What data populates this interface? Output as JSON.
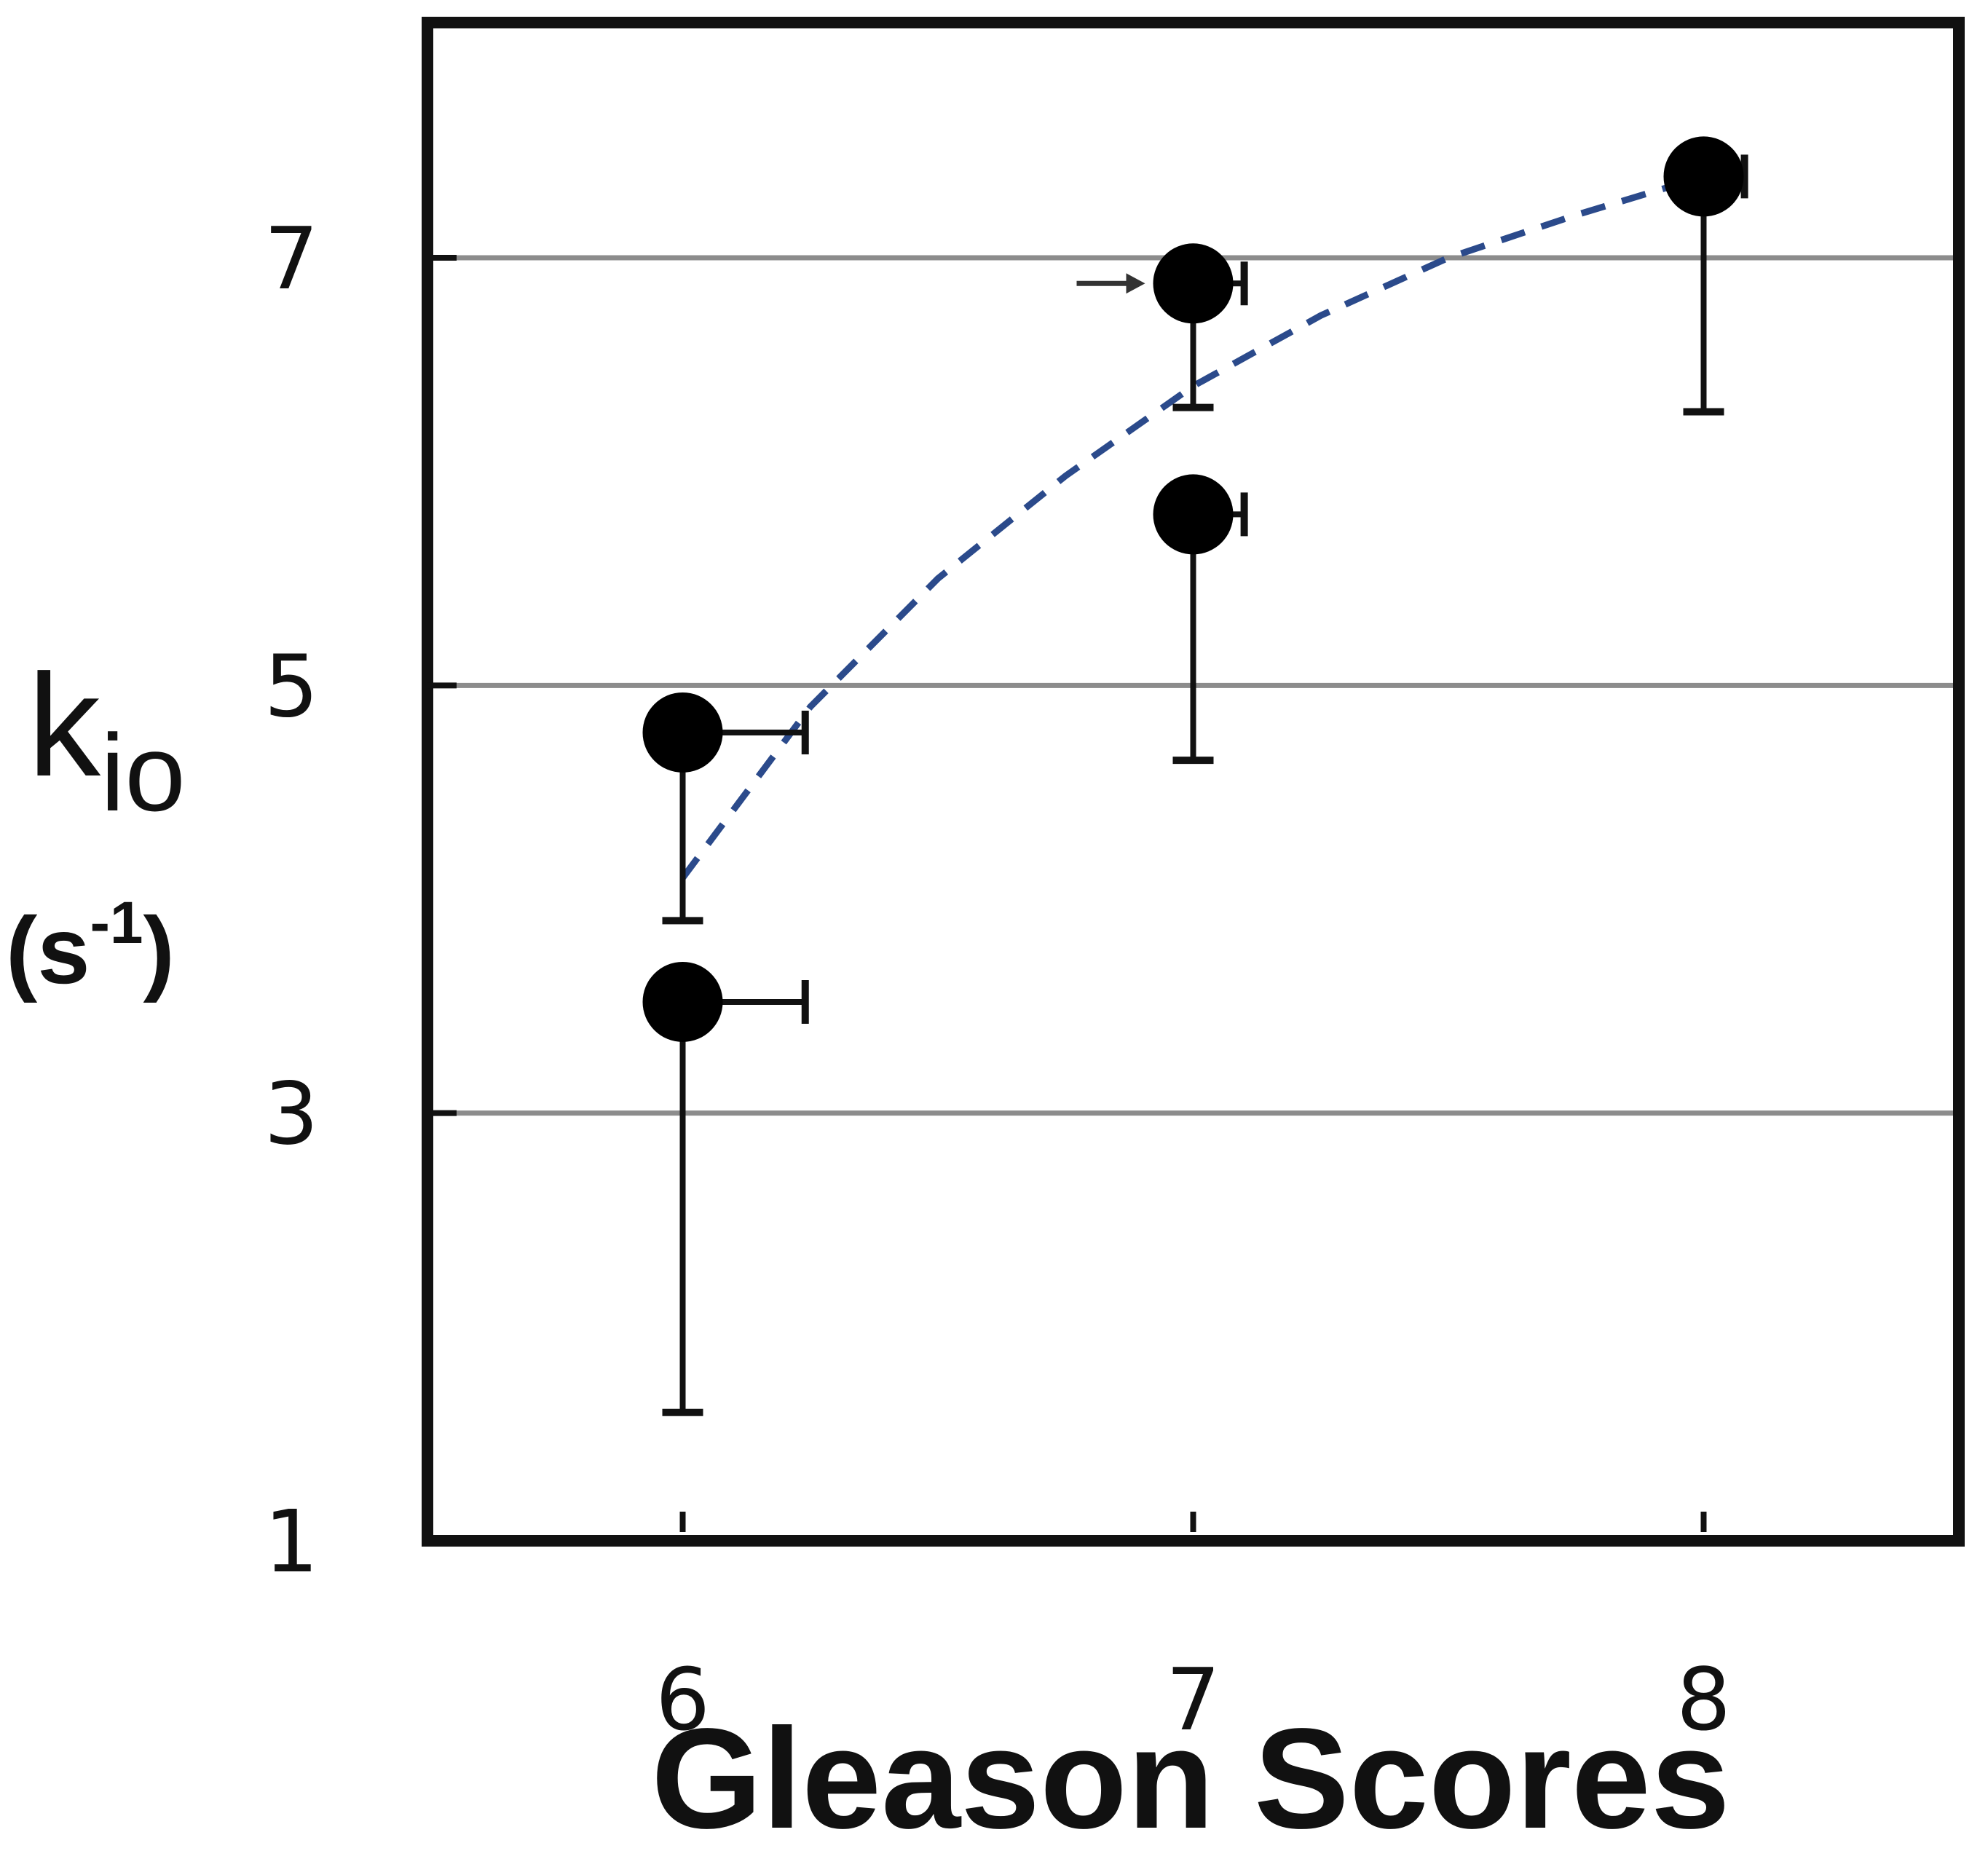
{
  "chart_data": {
    "type": "scatter",
    "xlabel": "Gleason Scores",
    "ylabel": {
      "symbol": "k",
      "subscript": "io",
      "unit": "(s",
      "unit_sup": "-1",
      "unit_close": ")"
    },
    "x_ticks": [
      "6",
      "7",
      "8"
    ],
    "y_ticks": [
      "1",
      "3",
      "5",
      "7"
    ],
    "xlim": [
      5.5,
      8.5
    ],
    "ylim": [
      1,
      8.1
    ],
    "grid_y": [
      3,
      5,
      7
    ],
    "points": [
      {
        "x": 6,
        "y": 4.78,
        "y_err_low": 3.9,
        "x_err_high": 6.24
      },
      {
        "x": 6,
        "y": 3.52,
        "y_err_low": 1.6,
        "x_err_high": 6.24
      },
      {
        "x": 7,
        "y": 6.88,
        "y_err_low": 6.3,
        "x_err_high": 7.1,
        "arrow": true
      },
      {
        "x": 7,
        "y": 5.8,
        "y_err_low": 4.65,
        "x_err_high": 7.1
      },
      {
        "x": 8,
        "y": 7.38,
        "y_err_low": 6.28,
        "x_err_high": 8.08
      }
    ],
    "trend": {
      "style": "dashed",
      "color": "#2b4a8b",
      "x": [
        6,
        6.25,
        6.5,
        6.75,
        7,
        7.25,
        7.5,
        7.75,
        8
      ],
      "y": [
        4.1,
        4.9,
        5.5,
        5.98,
        6.4,
        6.73,
        7.0,
        7.2,
        7.38
      ]
    },
    "colors": {
      "points": "#000000",
      "grid": "#8c8c8c",
      "frame": "#111111"
    }
  }
}
